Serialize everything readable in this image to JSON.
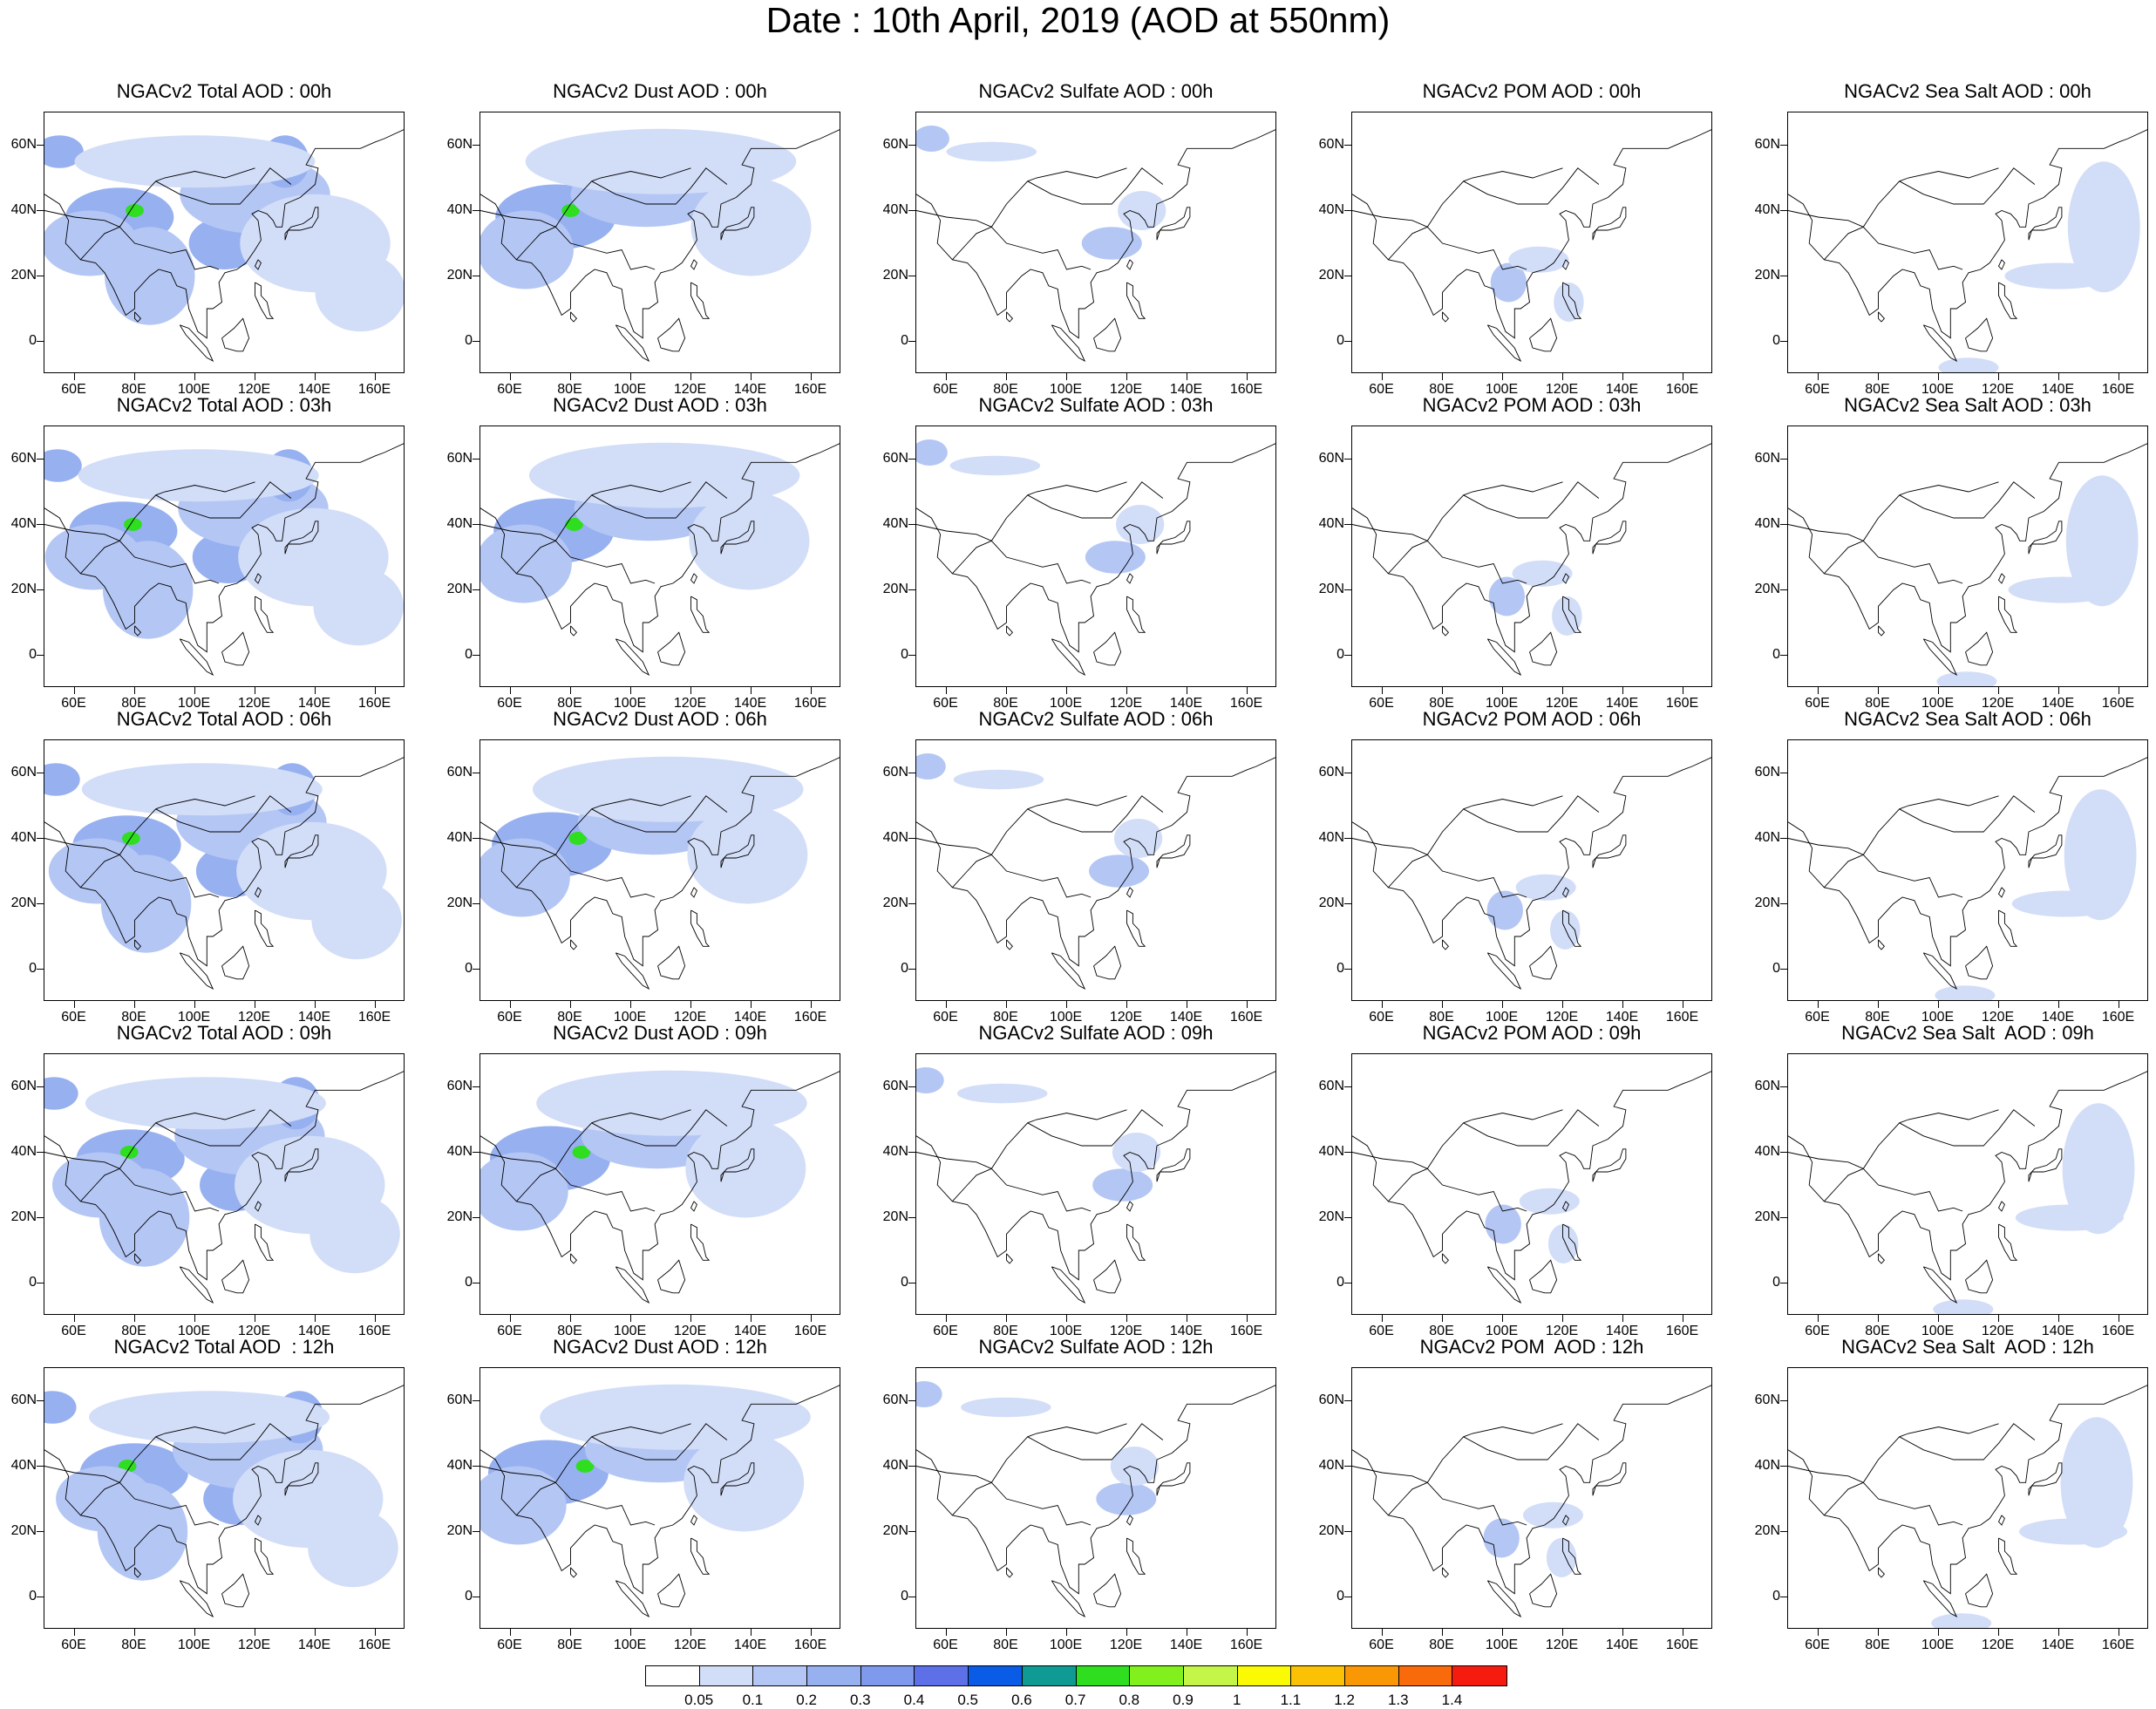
{
  "title": "Date : 10th April, 2019 (AOD at 550nm)",
  "chart_data": {
    "type": "heatmap",
    "panels": [
      [
        "NGACv2 Total AOD : 00h",
        "NGACv2 Dust AOD : 00h",
        "NGACv2 Sulfate AOD : 00h",
        "NGACv2 POM AOD : 00h",
        "NGACv2 Sea Salt AOD : 00h"
      ],
      [
        "NGACv2 Total AOD : 03h",
        "NGACv2 Dust AOD : 03h",
        "NGACv2 Sulfate AOD : 03h",
        "NGACv2 POM AOD : 03h",
        "NGACv2 Sea Salt AOD : 03h"
      ],
      [
        "NGACv2 Total AOD : 06h",
        "NGACv2 Dust AOD : 06h",
        "NGACv2 Sulfate AOD : 06h",
        "NGACv2 POM AOD : 06h",
        "NGACv2 Sea Salt AOD : 06h"
      ],
      [
        "NGACv2 Total AOD : 09h",
        "NGACv2 Dust AOD : 09h",
        "NGACv2 Sulfate AOD : 09h",
        "NGACv2 POM AOD : 09h",
        "NGACv2 Sea Salt  AOD : 09h"
      ],
      [
        "NGACv2 Total AOD  : 12h",
        "NGACv2 Dust AOD : 12h",
        "NGACv2 Sulfate AOD : 12h",
        "NGACv2 POM  AOD : 12h",
        "NGACv2 Sea Salt  AOD : 12h"
      ]
    ],
    "x_ticks": [
      "60E",
      "80E",
      "100E",
      "120E",
      "140E",
      "160E"
    ],
    "x_tick_values": [
      60,
      80,
      100,
      120,
      140,
      160
    ],
    "y_ticks": [
      "60N",
      "40N",
      "20N",
      "0"
    ],
    "y_tick_values": [
      60,
      40,
      20,
      0
    ],
    "xlim": [
      50,
      170
    ],
    "ylim": [
      -10,
      70
    ],
    "colorbar": {
      "labels": [
        "0.05",
        "0.1",
        "0.2",
        "0.3",
        "0.4",
        "0.5",
        "0.6",
        "0.7",
        "0.8",
        "0.9",
        "1",
        "1.1",
        "1.2",
        "1.3",
        "1.4"
      ],
      "colors": [
        "#ffffff",
        "#d2ddf8",
        "#b4c6f4",
        "#97b0f0",
        "#7f99ec",
        "#5d70e8",
        "#0a5be6",
        "#0f9a93",
        "#2ede1f",
        "#82f01c",
        "#c4f549",
        "#fafa05",
        "#fac105",
        "#fa9705",
        "#f86a0a",
        "#f51c0f"
      ]
    },
    "species_fields": {
      "total": [
        {
          "lon": 55,
          "lat": 58,
          "rx": 8,
          "ry": 5,
          "level": 3
        },
        {
          "lon": 75,
          "lat": 38,
          "rx": 18,
          "ry": 9,
          "level": 3
        },
        {
          "lon": 80,
          "lat": 40,
          "rx": 3,
          "ry": 2,
          "level": 8
        },
        {
          "lon": 65,
          "lat": 30,
          "rx": 16,
          "ry": 10,
          "level": 2
        },
        {
          "lon": 85,
          "lat": 20,
          "rx": 15,
          "ry": 15,
          "level": 2
        },
        {
          "lon": 110,
          "lat": 30,
          "rx": 12,
          "ry": 8,
          "level": 3
        },
        {
          "lon": 120,
          "lat": 45,
          "rx": 25,
          "ry": 12,
          "level": 2
        },
        {
          "lon": 130,
          "lat": 55,
          "rx": 8,
          "ry": 8,
          "level": 3
        },
        {
          "lon": 140,
          "lat": 30,
          "rx": 25,
          "ry": 15,
          "level": 1
        },
        {
          "lon": 100,
          "lat": 55,
          "rx": 40,
          "ry": 8,
          "level": 1
        },
        {
          "lon": 155,
          "lat": 15,
          "rx": 15,
          "ry": 12,
          "level": 1
        }
      ],
      "dust": [
        {
          "lon": 75,
          "lat": 38,
          "rx": 20,
          "ry": 10,
          "level": 3
        },
        {
          "lon": 80,
          "lat": 40,
          "rx": 3,
          "ry": 2,
          "level": 8
        },
        {
          "lon": 65,
          "lat": 28,
          "rx": 16,
          "ry": 12,
          "level": 2
        },
        {
          "lon": 105,
          "lat": 45,
          "rx": 25,
          "ry": 10,
          "level": 2
        },
        {
          "lon": 130,
          "lat": 50,
          "rx": 15,
          "ry": 10,
          "level": 2
        },
        {
          "lon": 110,
          "lat": 55,
          "rx": 45,
          "ry": 10,
          "level": 1
        },
        {
          "lon": 140,
          "lat": 35,
          "rx": 20,
          "ry": 15,
          "level": 1
        }
      ],
      "sulfate": [
        {
          "lon": 55,
          "lat": 62,
          "rx": 6,
          "ry": 4,
          "level": 2
        },
        {
          "lon": 115,
          "lat": 30,
          "rx": 10,
          "ry": 5,
          "level": 2
        },
        {
          "lon": 125,
          "lat": 40,
          "rx": 8,
          "ry": 6,
          "level": 1
        },
        {
          "lon": 75,
          "lat": 58,
          "rx": 15,
          "ry": 3,
          "level": 1
        }
      ],
      "pom": [
        {
          "lon": 102,
          "lat": 18,
          "rx": 6,
          "ry": 6,
          "level": 2
        },
        {
          "lon": 112,
          "lat": 25,
          "rx": 10,
          "ry": 4,
          "level": 1
        },
        {
          "lon": 122,
          "lat": 12,
          "rx": 5,
          "ry": 6,
          "level": 1
        }
      ],
      "seasalt": [
        {
          "lon": 155,
          "lat": 35,
          "rx": 12,
          "ry": 20,
          "level": 1
        },
        {
          "lon": 140,
          "lat": 20,
          "rx": 18,
          "ry": 4,
          "level": 1
        },
        {
          "lon": 110,
          "lat": -8,
          "rx": 10,
          "ry": 3,
          "level": 1
        }
      ]
    }
  }
}
